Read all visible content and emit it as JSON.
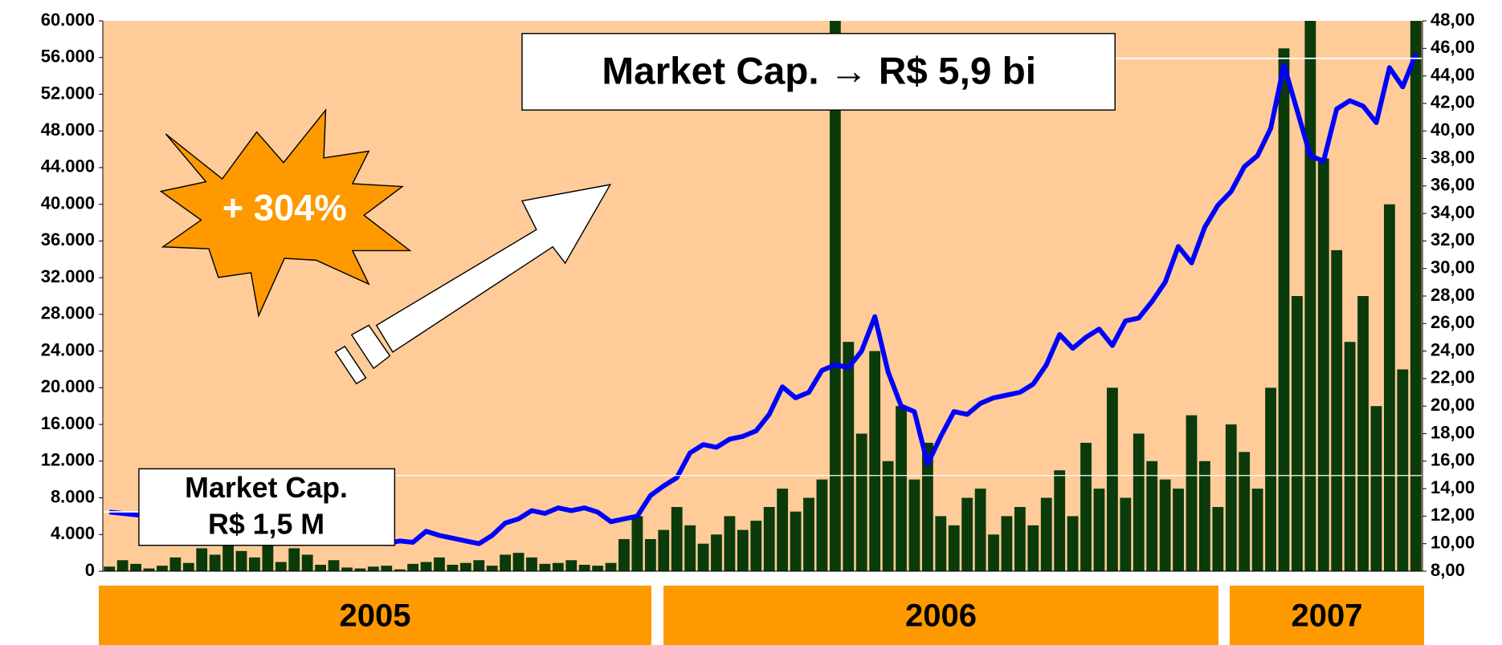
{
  "chart_data": {
    "type": "bar",
    "categories": [
      null,
      null,
      null,
      null,
      null,
      null,
      null,
      null,
      null,
      null,
      null,
      null,
      null,
      null,
      null,
      null,
      null,
      null,
      null,
      null,
      null,
      null,
      null,
      null,
      null,
      null,
      null,
      null,
      null,
      null,
      null,
      null,
      null,
      null,
      null,
      null,
      null,
      null,
      null,
      null,
      null,
      null,
      null,
      null,
      null,
      null,
      null,
      null,
      null,
      null,
      null,
      null,
      null,
      null,
      null,
      null,
      null,
      null,
      null,
      null,
      null,
      null,
      null,
      null,
      null,
      null,
      null,
      null,
      null,
      null,
      null,
      null,
      null,
      null,
      null,
      null,
      null,
      null,
      null,
      null,
      null,
      null,
      null,
      null,
      null,
      null,
      null,
      null,
      null,
      null,
      null,
      null,
      null,
      null,
      null,
      null,
      null,
      null,
      null,
      null
    ],
    "series": [
      {
        "type": "bar",
        "color": "#0b3a0b",
        "values": [
          500,
          1200,
          800,
          300,
          600,
          1500,
          900,
          2500,
          1800,
          3000,
          2200,
          1500,
          2800,
          1000,
          2500,
          1800,
          700,
          1200,
          400,
          300,
          500,
          600,
          200,
          800,
          1000,
          1500,
          700,
          900,
          1200,
          600,
          1800,
          2000,
          1500,
          800,
          900,
          1200,
          700,
          600,
          900,
          3500,
          6000,
          3500,
          4500,
          7000,
          5000,
          3000,
          4000,
          6000,
          4500,
          5500,
          7000,
          9000,
          6500,
          8000,
          10000,
          60000,
          25000,
          15000,
          24000,
          12000,
          18000,
          10000,
          14000,
          6000,
          5000,
          8000,
          9000,
          4000,
          6000,
          7000,
          5000,
          8000,
          11000,
          6000,
          14000,
          9000,
          20000,
          8000,
          15000,
          12000,
          10000,
          9000,
          17000,
          12000,
          7000,
          16000,
          13000,
          9000,
          20000,
          57000,
          30000,
          60000,
          45000,
          35000,
          25000,
          30000,
          18000,
          40000,
          22000,
          60000
        ]
      },
      {
        "type": "line",
        "color": "#0000ff",
        "axis": "y2",
        "values": [
          12.3,
          12.2,
          12.1,
          12.0,
          11.6,
          11.3,
          11.0,
          11.2,
          11.0,
          11.3,
          11.5,
          11.2,
          11.4,
          11.1,
          10.9,
          11.3,
          11.0,
          10.8,
          10.9,
          11.2,
          10.6,
          10.0,
          10.2,
          10.1,
          10.9,
          10.6,
          10.4,
          10.2,
          10.0,
          10.6,
          11.5,
          11.8,
          12.4,
          12.2,
          12.6,
          12.4,
          12.6,
          12.3,
          11.6,
          11.8,
          12.0,
          13.5,
          14.2,
          14.8,
          16.6,
          17.2,
          17.0,
          17.6,
          17.8,
          18.2,
          19.4,
          21.4,
          20.6,
          21.0,
          22.6,
          23.0,
          22.8,
          24.0,
          26.5,
          22.5,
          20.0,
          19.6,
          15.8,
          17.8,
          19.6,
          19.4,
          20.2,
          20.6,
          20.8,
          21.0,
          21.6,
          23.0,
          25.2,
          24.2,
          25.0,
          25.6,
          24.4,
          26.2,
          26.4,
          27.6,
          29.0,
          31.6,
          30.4,
          33.0,
          34.6,
          35.6,
          37.4,
          38.2,
          40.2,
          44.8,
          41.5,
          38.2,
          37.8,
          41.6,
          42.2,
          41.8,
          40.6,
          44.6,
          43.2,
          45.6
        ]
      }
    ],
    "ylim": [
      0,
      60000
    ],
    "yticks": [
      0,
      {
        "value": 4000,
        "label": "4.000"
      },
      {
        "value": 8000,
        "label": "8.000"
      },
      {
        "value": 12000,
        "label": "12.000"
      },
      {
        "value": 16000,
        "label": "16.000"
      },
      {
        "value": 20000,
        "label": "20.000"
      },
      {
        "value": 24000,
        "label": "24.000"
      },
      {
        "value": 28000,
        "label": "28.000"
      },
      {
        "value": 32000,
        "label": "32.000"
      },
      {
        "value": 36000,
        "label": "36.000"
      },
      {
        "value": 40000,
        "label": "40.000"
      },
      {
        "value": 44000,
        "label": "44.000"
      },
      {
        "value": 48000,
        "label": "48.000"
      },
      {
        "value": 52000,
        "label": "52.000"
      },
      {
        "value": 56000,
        "label": "56.000"
      },
      {
        "value": 60000,
        "label": "60.000"
      }
    ],
    "y2lim": [
      8,
      48
    ],
    "y2ticks": [
      {
        "value": 8,
        "label": "8,00"
      },
      {
        "value": 10,
        "label": "10,00"
      },
      {
        "value": 12,
        "label": "12,00"
      },
      {
        "value": 14,
        "label": "14,00"
      },
      {
        "value": 16,
        "label": "16,00"
      },
      {
        "value": 18,
        "label": "18,00"
      },
      {
        "value": 20,
        "label": "20,00"
      },
      {
        "value": 22,
        "label": "22,00"
      },
      {
        "value": 24,
        "label": "24,00"
      },
      {
        "value": 26,
        "label": "26,00"
      },
      {
        "value": 28,
        "label": "28,00"
      },
      {
        "value": 30,
        "label": "30,00"
      },
      {
        "value": 32,
        "label": "32,00"
      },
      {
        "value": 34,
        "label": "34,00"
      },
      {
        "value": 36,
        "label": "36,00"
      },
      {
        "value": 38,
        "label": "38,00"
      },
      {
        "value": 40,
        "label": "40,00"
      },
      {
        "value": 42,
        "label": "42,00"
      },
      {
        "value": 44,
        "label": "44,00"
      },
      {
        "value": 46,
        "label": "46,00"
      },
      {
        "value": 48,
        "label": "48,00"
      }
    ],
    "periods": [
      "2005",
      "2006",
      "2007"
    ],
    "annotations": [
      "Market Cap. → R$ 5,9 bi",
      "Market Cap.",
      "R$ 1,5 M",
      "+ 304%"
    ],
    "background": "#ffcc99",
    "period_color": "#ff9900"
  }
}
